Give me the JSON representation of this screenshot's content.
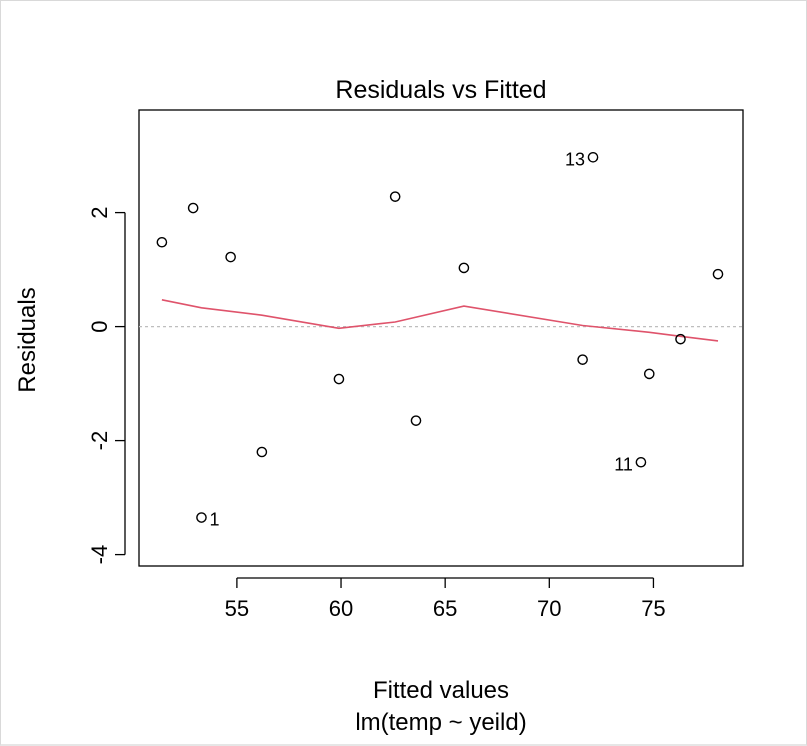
{
  "chart_data": {
    "type": "scatter",
    "title": "Residuals vs Fitted",
    "xlabel": "Fitted values",
    "subtitle": "lm(temp ~ yeild)",
    "ylabel": "Residuals",
    "xlim": [
      50.3,
      79.3
    ],
    "ylim": [
      -4.2,
      3.8
    ],
    "x_ticks": [
      55,
      60,
      65,
      70,
      75
    ],
    "y_ticks": [
      -4,
      -2,
      0,
      2
    ],
    "x_tick_labels": [
      "55",
      "60",
      "65",
      "70",
      "75"
    ],
    "y_tick_labels": [
      "-4",
      "-2",
      "0",
      "2"
    ],
    "grid": false,
    "colors": {
      "points": "#000000",
      "smooth_line": "#DF536B",
      "zero_line": "#BEBEBE"
    },
    "points": [
      {
        "x": 51.4,
        "y": 1.48
      },
      {
        "x": 52.9,
        "y": 2.08
      },
      {
        "x": 53.3,
        "y": -3.35,
        "label": "1"
      },
      {
        "x": 54.7,
        "y": 1.22
      },
      {
        "x": 56.2,
        "y": -2.2
      },
      {
        "x": 59.9,
        "y": -0.92
      },
      {
        "x": 62.6,
        "y": 2.28
      },
      {
        "x": 63.6,
        "y": -1.65
      },
      {
        "x": 65.9,
        "y": 1.03
      },
      {
        "x": 71.6,
        "y": -0.58
      },
      {
        "x": 72.1,
        "y": 2.97,
        "label": "13"
      },
      {
        "x": 74.4,
        "y": -2.38,
        "label": "11"
      },
      {
        "x": 74.8,
        "y": -0.83
      },
      {
        "x": 76.3,
        "y": -0.22
      },
      {
        "x": 78.1,
        "y": 0.92
      }
    ],
    "smooth_line": [
      {
        "x": 51.4,
        "y": 0.47
      },
      {
        "x": 53.3,
        "y": 0.33
      },
      {
        "x": 56.2,
        "y": 0.2
      },
      {
        "x": 59.9,
        "y": -0.03
      },
      {
        "x": 62.6,
        "y": 0.08
      },
      {
        "x": 65.9,
        "y": 0.36
      },
      {
        "x": 71.6,
        "y": 0.02
      },
      {
        "x": 74.8,
        "y": -0.1
      },
      {
        "x": 76.3,
        "y": -0.17
      },
      {
        "x": 78.1,
        "y": -0.25
      }
    ]
  }
}
